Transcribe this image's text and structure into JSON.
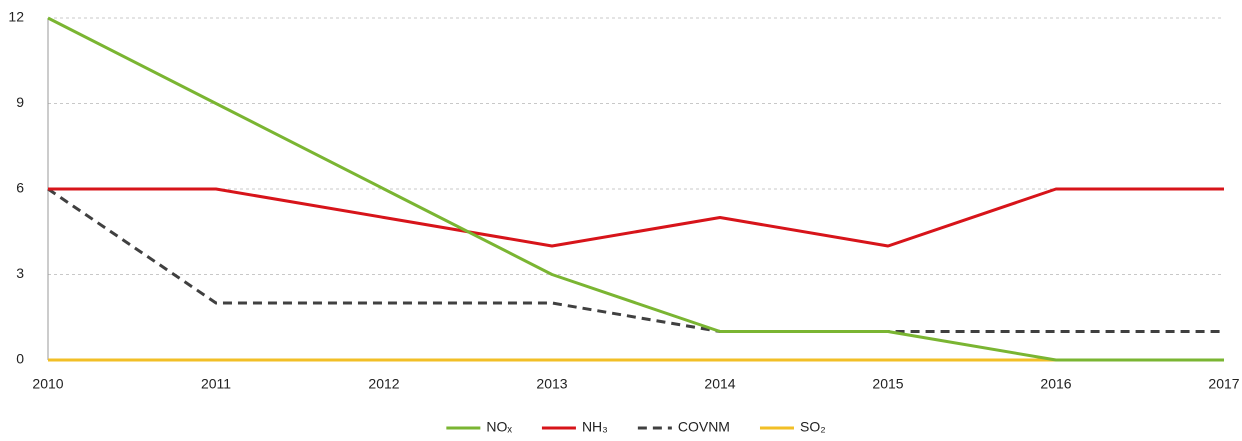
{
  "chart_data": {
    "type": "line",
    "categories": [
      "2010",
      "2011",
      "2012",
      "2013",
      "2014",
      "2015",
      "2016",
      "2017"
    ],
    "series": [
      {
        "name": "NOₓ",
        "color": "#7ab532",
        "values": [
          12,
          9,
          6,
          3,
          1,
          1,
          0,
          0
        ]
      },
      {
        "name": "NH₃",
        "color": "#d7141a",
        "values": [
          6,
          6,
          5,
          4,
          5,
          4,
          6,
          6
        ]
      },
      {
        "name": "COVNM",
        "color": "#404040",
        "dashed": true,
        "values": [
          6,
          2,
          2,
          2,
          1,
          1,
          1,
          1
        ]
      },
      {
        "name": "SO₂",
        "color": "#f2bf26",
        "values": [
          0,
          0,
          0,
          0,
          0,
          0,
          0,
          0
        ]
      }
    ],
    "ylim": [
      0,
      12
    ],
    "yticks": [
      0,
      3,
      6,
      9,
      12
    ],
    "grid": true,
    "legend": "bottom"
  }
}
